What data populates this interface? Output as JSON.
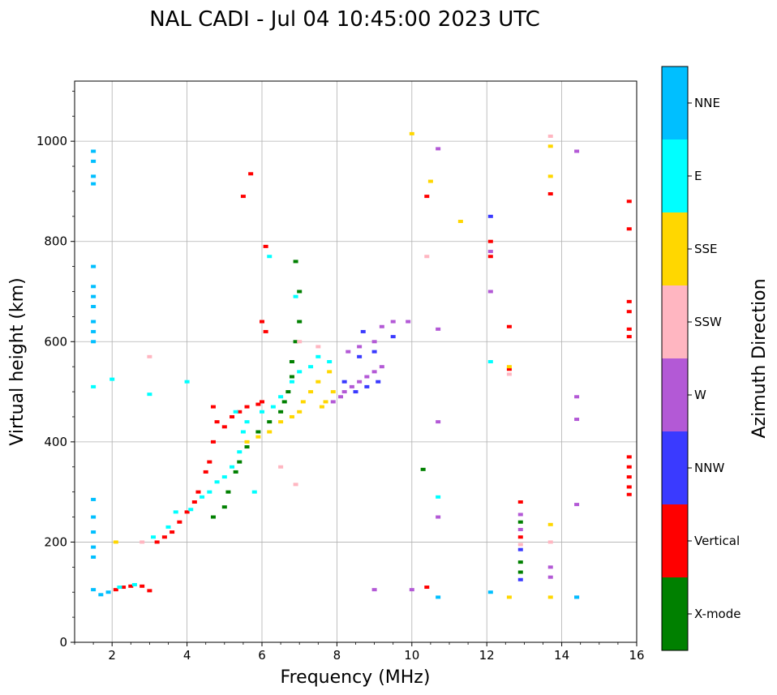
{
  "chart_data": {
    "type": "scatter",
    "title": "NAL CADI - Jul 04 10:45:00 2023 UTC",
    "xlabel": "Frequency (MHz)",
    "ylabel": "Virtual height (km)",
    "xlim": [
      1,
      16
    ],
    "ylim": [
      0,
      1120
    ],
    "xticks": [
      2,
      4,
      6,
      8,
      10,
      12,
      14,
      16
    ],
    "yticks": [
      0,
      200,
      400,
      600,
      800,
      1000
    ],
    "grid": true,
    "colorbar": {
      "label": "Azimuth Direction",
      "categories": [
        {
          "name": "X-mode",
          "color": "#008000"
        },
        {
          "name": "Vertical",
          "color": "#ff0000"
        },
        {
          "name": "NNW",
          "color": "#3a3aff"
        },
        {
          "name": "W",
          "color": "#b359d6"
        },
        {
          "name": "SSW",
          "color": "#ffb6c1"
        },
        {
          "name": "SSE",
          "color": "#ffd700"
        },
        {
          "name": "E",
          "color": "#00ffff"
        },
        {
          "name": "NNE",
          "color": "#00bfff"
        }
      ]
    },
    "series": [
      {
        "name": "Vertical",
        "points": [
          [
            2.1,
            105
          ],
          [
            2.3,
            110
          ],
          [
            2.5,
            112
          ],
          [
            2.8,
            112
          ],
          [
            3.0,
            103
          ],
          [
            3.2,
            200
          ],
          [
            3.4,
            210
          ],
          [
            3.6,
            220
          ],
          [
            3.8,
            240
          ],
          [
            4.0,
            260
          ],
          [
            4.2,
            280
          ],
          [
            4.3,
            300
          ],
          [
            4.5,
            340
          ],
          [
            4.6,
            360
          ],
          [
            4.7,
            400
          ],
          [
            4.7,
            470
          ],
          [
            4.8,
            440
          ],
          [
            5.0,
            430
          ],
          [
            5.2,
            450
          ],
          [
            5.4,
            460
          ],
          [
            5.6,
            470
          ],
          [
            5.9,
            475
          ],
          [
            6.0,
            480
          ],
          [
            6.0,
            640
          ],
          [
            6.1,
            620
          ],
          [
            6.1,
            790
          ],
          [
            5.5,
            890
          ],
          [
            5.7,
            935
          ],
          [
            10.4,
            890
          ],
          [
            10.4,
            110
          ],
          [
            12.1,
            800
          ],
          [
            12.1,
            770
          ],
          [
            12.6,
            630
          ],
          [
            12.6,
            545
          ],
          [
            12.9,
            280
          ],
          [
            12.9,
            210
          ],
          [
            15.8,
            880
          ],
          [
            15.8,
            825
          ],
          [
            15.8,
            680
          ],
          [
            15.8,
            660
          ],
          [
            15.8,
            625
          ],
          [
            15.8,
            610
          ],
          [
            15.8,
            370
          ],
          [
            15.8,
            350
          ],
          [
            15.8,
            330
          ],
          [
            15.8,
            310
          ],
          [
            15.8,
            295
          ],
          [
            13.7,
            895
          ]
        ]
      },
      {
        "name": "E",
        "points": [
          [
            1.5,
            510
          ],
          [
            2.0,
            525
          ],
          [
            2.2,
            110
          ],
          [
            2.6,
            115
          ],
          [
            3.1,
            210
          ],
          [
            3.5,
            230
          ],
          [
            3.7,
            260
          ],
          [
            4.1,
            265
          ],
          [
            4.4,
            290
          ],
          [
            4.6,
            300
          ],
          [
            4.8,
            320
          ],
          [
            5.0,
            330
          ],
          [
            5.2,
            350
          ],
          [
            5.4,
            380
          ],
          [
            5.5,
            420
          ],
          [
            5.6,
            440
          ],
          [
            5.3,
            460
          ],
          [
            5.8,
            300
          ],
          [
            6.0,
            460
          ],
          [
            6.3,
            470
          ],
          [
            6.5,
            490
          ],
          [
            6.8,
            520
          ],
          [
            7.0,
            540
          ],
          [
            7.3,
            550
          ],
          [
            7.5,
            570
          ],
          [
            7.8,
            560
          ],
          [
            4.0,
            520
          ],
          [
            3.0,
            495
          ],
          [
            6.2,
            770
          ],
          [
            6.9,
            690
          ],
          [
            10.7,
            290
          ],
          [
            12.1,
            560
          ]
        ]
      },
      {
        "name": "X-mode",
        "points": [
          [
            4.7,
            250
          ],
          [
            5.0,
            270
          ],
          [
            5.1,
            300
          ],
          [
            5.3,
            340
          ],
          [
            5.4,
            360
          ],
          [
            5.6,
            390
          ],
          [
            5.9,
            420
          ],
          [
            6.2,
            440
          ],
          [
            6.5,
            460
          ],
          [
            6.6,
            480
          ],
          [
            6.7,
            500
          ],
          [
            6.8,
            530
          ],
          [
            6.8,
            560
          ],
          [
            6.9,
            600
          ],
          [
            7.0,
            640
          ],
          [
            7.0,
            700
          ],
          [
            6.9,
            760
          ],
          [
            12.9,
            160
          ],
          [
            12.9,
            140
          ],
          [
            12.9,
            240
          ],
          [
            10.3,
            345
          ]
        ]
      },
      {
        "name": "SSE",
        "points": [
          [
            5.6,
            400
          ],
          [
            5.9,
            410
          ],
          [
            6.2,
            420
          ],
          [
            6.5,
            440
          ],
          [
            6.8,
            450
          ],
          [
            7.0,
            460
          ],
          [
            7.1,
            480
          ],
          [
            7.3,
            500
          ],
          [
            7.5,
            520
          ],
          [
            7.6,
            470
          ],
          [
            7.7,
            480
          ],
          [
            7.9,
            500
          ],
          [
            7.8,
            540
          ],
          [
            2.1,
            200
          ],
          [
            10.5,
            920
          ],
          [
            11.3,
            840
          ],
          [
            12.6,
            90
          ],
          [
            12.6,
            550
          ],
          [
            13.7,
            990
          ],
          [
            13.7,
            930
          ],
          [
            13.7,
            90
          ],
          [
            13.7,
            235
          ],
          [
            10.0,
            1015
          ]
        ]
      },
      {
        "name": "W",
        "points": [
          [
            7.9,
            480
          ],
          [
            8.1,
            490
          ],
          [
            8.2,
            500
          ],
          [
            8.4,
            510
          ],
          [
            8.6,
            520
          ],
          [
            8.8,
            530
          ],
          [
            9.0,
            540
          ],
          [
            9.2,
            550
          ],
          [
            8.3,
            580
          ],
          [
            8.6,
            590
          ],
          [
            9.0,
            600
          ],
          [
            9.2,
            630
          ],
          [
            9.5,
            640
          ],
          [
            9.9,
            640
          ],
          [
            10.7,
            985
          ],
          [
            12.1,
            700
          ],
          [
            12.1,
            780
          ],
          [
            12.9,
            255
          ],
          [
            12.9,
            225
          ],
          [
            13.7,
            150
          ],
          [
            13.7,
            130
          ],
          [
            14.4,
            980
          ],
          [
            14.4,
            490
          ],
          [
            14.4,
            445
          ],
          [
            14.4,
            275
          ],
          [
            14.4,
            90
          ],
          [
            10.7,
            625
          ],
          [
            10.7,
            440
          ],
          [
            10.7,
            250
          ],
          [
            10.0,
            105
          ],
          [
            9.0,
            105
          ]
        ]
      },
      {
        "name": "NNW",
        "points": [
          [
            8.2,
            520
          ],
          [
            8.5,
            500
          ],
          [
            8.8,
            510
          ],
          [
            9.1,
            520
          ],
          [
            9.0,
            580
          ],
          [
            8.6,
            570
          ],
          [
            8.7,
            620
          ],
          [
            9.5,
            610
          ],
          [
            12.9,
            185
          ],
          [
            12.9,
            125
          ],
          [
            12.1,
            850
          ]
        ]
      },
      {
        "name": "SSW",
        "points": [
          [
            7.0,
            600
          ],
          [
            7.5,
            590
          ],
          [
            2.8,
            200
          ],
          [
            3.0,
            570
          ],
          [
            6.5,
            350
          ],
          [
            6.9,
            315
          ],
          [
            10.4,
            770
          ],
          [
            12.6,
            535
          ],
          [
            13.7,
            1010
          ],
          [
            13.7,
            200
          ],
          [
            12.9,
            195
          ]
        ]
      },
      {
        "name": "NNE",
        "points": [
          [
            1.5,
            980
          ],
          [
            1.5,
            960
          ],
          [
            1.5,
            930
          ],
          [
            1.5,
            915
          ],
          [
            1.5,
            750
          ],
          [
            1.5,
            710
          ],
          [
            1.5,
            690
          ],
          [
            1.5,
            670
          ],
          [
            1.5,
            640
          ],
          [
            1.5,
            620
          ],
          [
            1.5,
            600
          ],
          [
            1.5,
            285
          ],
          [
            1.5,
            250
          ],
          [
            1.5,
            220
          ],
          [
            1.5,
            190
          ],
          [
            1.5,
            170
          ],
          [
            1.5,
            105
          ],
          [
            1.7,
            95
          ],
          [
            1.9,
            100
          ],
          [
            10.7,
            90
          ],
          [
            12.1,
            100
          ],
          [
            14.4,
            90
          ]
        ]
      }
    ]
  }
}
